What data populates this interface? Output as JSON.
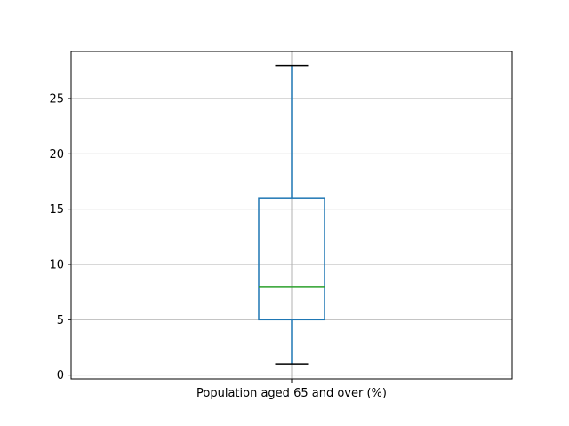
{
  "chart_data": {
    "type": "box",
    "categories": [
      "Population aged 65 and over (%)"
    ],
    "boxes": [
      {
        "category": "Population aged 65 and over (%)",
        "whisker_low": 1,
        "q1": 5,
        "median": 8,
        "q3": 16,
        "whisker_high": 28
      }
    ],
    "ylim": [
      -0.35,
      29.25
    ],
    "yticks": [
      0,
      5,
      10,
      15,
      20,
      25
    ],
    "grid": true,
    "colors": {
      "box": "#1f77b4",
      "median": "#2ca02c",
      "whisker": "#1f77b4",
      "cap": "#000000",
      "grid": "#b0b0b0"
    }
  }
}
